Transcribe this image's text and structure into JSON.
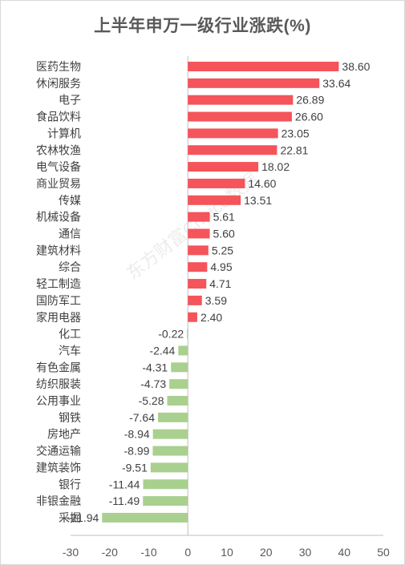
{
  "title": "上半年申万一级行业涨跌(%)",
  "watermark": "东方财富Choice数据",
  "colors": {
    "positive": "#f4545a",
    "negative": "#a9d08e",
    "axis": "#bfbfbf"
  },
  "chart_data": {
    "type": "bar",
    "orientation": "horizontal",
    "title": "上半年申万一级行业涨跌(%)",
    "xlim": [
      -30,
      50
    ],
    "xticks": [
      -30,
      -20,
      -10,
      0,
      10,
      20,
      30,
      40,
      50
    ],
    "grid": false,
    "categories": [
      "医药生物",
      "休闲服务",
      "电子",
      "食品饮料",
      "计算机",
      "农林牧渔",
      "电气设备",
      "商业贸易",
      "传媒",
      "机械设备",
      "通信",
      "建筑材料",
      "综合",
      "轻工制造",
      "国防军工",
      "家用电器",
      "化工",
      "汽车",
      "有色金属",
      "纺织服装",
      "公用事业",
      "钢铁",
      "房地产",
      "交通运输",
      "建筑装饰",
      "银行",
      "非银金融",
      "采掘"
    ],
    "values": [
      38.6,
      33.64,
      26.89,
      26.6,
      23.05,
      22.81,
      18.02,
      14.6,
      13.51,
      5.61,
      5.6,
      5.25,
      4.95,
      4.71,
      3.59,
      2.4,
      -0.22,
      -2.44,
      -4.31,
      -4.73,
      -5.28,
      -7.64,
      -8.94,
      -8.99,
      -9.51,
      -11.44,
      -11.49,
      -21.94
    ],
    "value_labels": [
      "38.60",
      "33.64",
      "26.89",
      "26.60",
      "23.05",
      "22.81",
      "18.02",
      "14.60",
      "13.51",
      "5.61",
      "5.60",
      "5.25",
      "4.95",
      "4.71",
      "3.59",
      "2.40",
      "-0.22",
      "-2.44",
      "-4.31",
      "-4.73",
      "-5.28",
      "-7.64",
      "-8.94",
      "-8.99",
      "-9.51",
      "-11.44",
      "-11.49",
      "-21.94"
    ]
  }
}
